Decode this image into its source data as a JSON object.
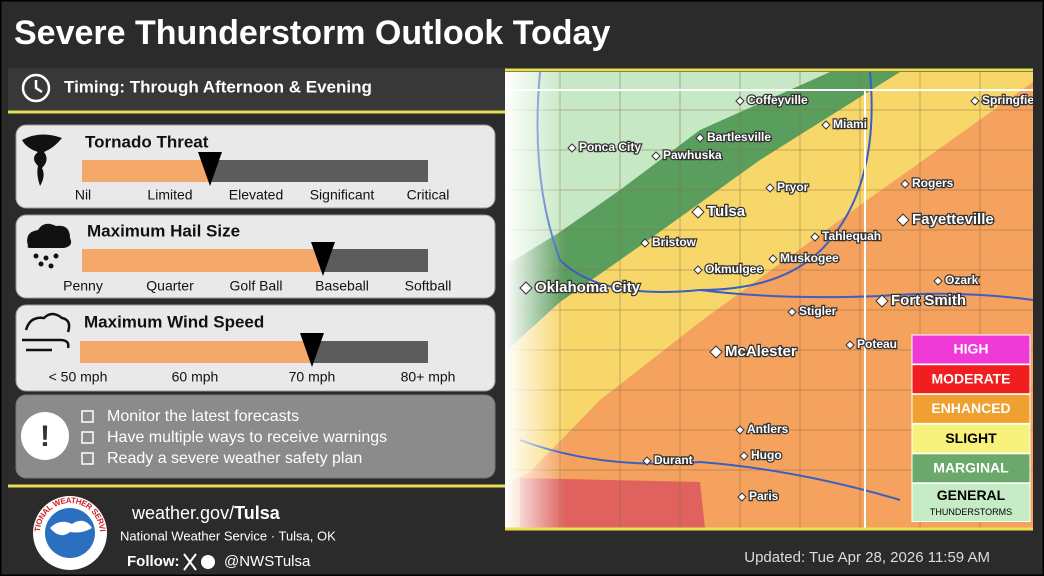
{
  "header": {
    "title": "Severe Thunderstorm Outlook Today",
    "timing": "Timing: Through Afternoon & Evening"
  },
  "threats": [
    {
      "title": "Tornado Threat",
      "scale": [
        "Nil",
        "Limited",
        "Elevated",
        "Significant",
        "Critical"
      ]
    },
    {
      "title": "Maximum Hail Size",
      "scale": [
        "Penny",
        "Quarter",
        "Golf Ball",
        "Baseball",
        "Softball"
      ]
    },
    {
      "title": "Maximum Wind Speed",
      "scale": [
        "< 50 mph",
        "60 mph",
        "70 mph",
        "80+ mph"
      ]
    }
  ],
  "actions": [
    "Monitor the latest forecasts",
    "Have multiple ways to receive warnings",
    "Ready a severe weather safety plan"
  ],
  "map": {
    "cities": [
      "Coffeyville",
      "Springfield",
      "Ponca City",
      "Bartlesville",
      "Miami",
      "Pawhuska",
      "Pryor",
      "Rogers",
      "Tulsa",
      "Fayetteville",
      "Bristow",
      "Tahlequah",
      "Muskogee",
      "Okmulgee",
      "Ozark",
      "Oklahoma City",
      "Fort Smith",
      "Stigler",
      "Poteau",
      "McAlester",
      "Antlers",
      "Hugo",
      "Durant",
      "Paris"
    ]
  },
  "legend": [
    {
      "label": "HIGH"
    },
    {
      "label": "MODERATE"
    },
    {
      "label": "ENHANCED"
    },
    {
      "label": "SLIGHT"
    },
    {
      "label": "MARGINAL"
    },
    {
      "label": "GENERAL",
      "sublabel": "THUNDERSTORMS"
    }
  ],
  "footer": {
    "logo_text": "NATIONAL WEATHER SERVICE",
    "website_prefix": "weather.gov/",
    "website_office": "Tulsa",
    "office": "National Weather Service · Tulsa, OK",
    "follow": "Follow:",
    "handle": "@NWSTulsa",
    "updated": "Updated: Tue Apr 28, 2026 11:59 AM"
  }
}
